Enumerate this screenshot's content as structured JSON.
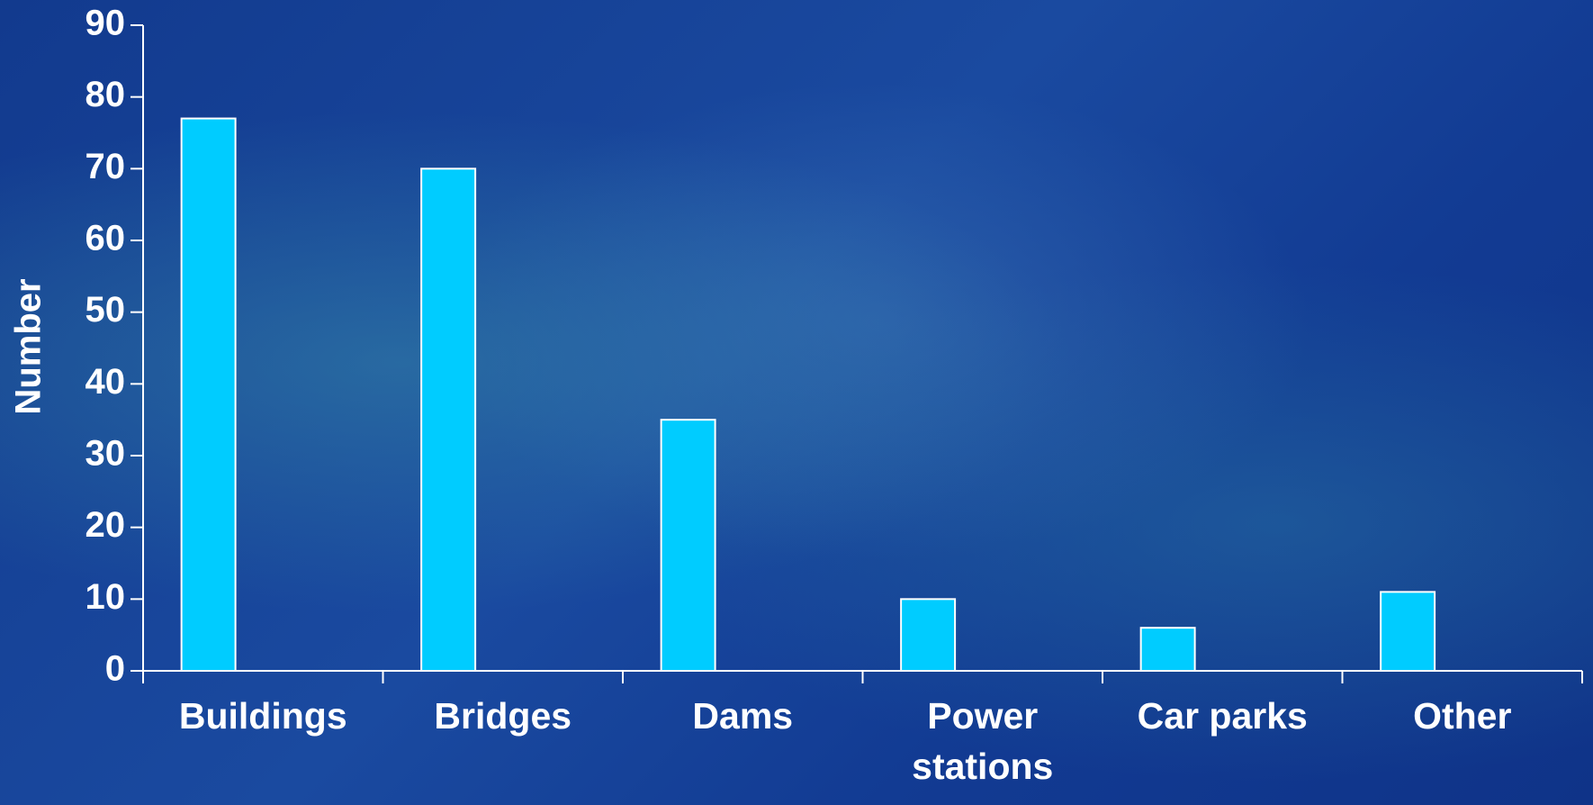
{
  "chart_data": {
    "type": "bar",
    "y_label": "Number",
    "categories": [
      "Buildings",
      "Bridges",
      "Dams",
      "Power stations",
      "Car parks",
      "Other"
    ],
    "values": [
      77,
      70,
      35,
      10,
      6,
      11
    ],
    "color": "#00ccff",
    "ylim": [
      0,
      90
    ],
    "yticks": [
      0,
      10,
      20,
      30,
      40,
      50,
      60,
      70,
      80,
      90
    ]
  }
}
